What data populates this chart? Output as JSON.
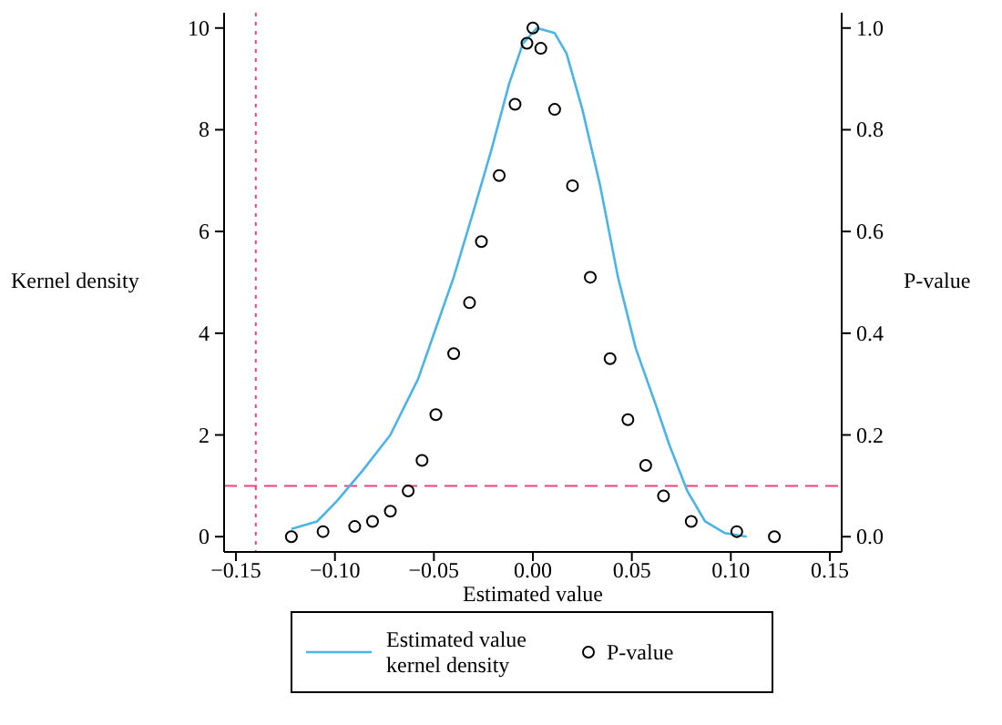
{
  "chart_data": {
    "type": "line",
    "xlabel": "Estimated value",
    "ylabel": "Kernel density",
    "y2label": "P-value",
    "xlim": [
      -0.156,
      0.156
    ],
    "xticks": [
      {
        "value": -0.15,
        "label": "−0.15"
      },
      {
        "value": -0.1,
        "label": "−0.10"
      },
      {
        "value": -0.05,
        "label": "−0.05"
      },
      {
        "value": 0,
        "label": "0.00"
      },
      {
        "value": 0.05,
        "label": "0.05"
      },
      {
        "value": 0.1,
        "label": "0.10"
      },
      {
        "value": 0.15,
        "label": "0.15"
      }
    ],
    "ylim": [
      -0.3,
      10.3
    ],
    "yticks": [
      0,
      2,
      4,
      6,
      8,
      10
    ],
    "y2lim": [
      -0.03,
      1.03
    ],
    "y2ticks": [
      {
        "value": 0,
        "label": "0.0"
      },
      {
        "value": 0.2,
        "label": "0.2"
      },
      {
        "value": 0.4,
        "label": "0.4"
      },
      {
        "value": 0.6,
        "label": "0.6"
      },
      {
        "value": 0.8,
        "label": "0.8"
      },
      {
        "value": 1,
        "label": "1.0"
      }
    ],
    "legend": "bottom",
    "grid": false,
    "ref_lines": [
      {
        "axis": "x",
        "value": -0.14,
        "color": "#e8457c",
        "line_style": "dotted"
      },
      {
        "axis": "y2",
        "value": 0.1,
        "color": "#e8457c",
        "line_style": "dashed"
      }
    ],
    "series": [
      {
        "name": "Estimated value kernel density",
        "color": "#4ab4e6",
        "line_style": "solid",
        "x": [
          -0.122,
          -0.109,
          -0.099,
          -0.086,
          -0.072,
          -0.058,
          -0.049,
          -0.04,
          -0.03,
          -0.021,
          -0.012,
          -0.005,
          0.002,
          0.011,
          0.017,
          0.025,
          0.034,
          0.043,
          0.052,
          0.062,
          0.069,
          0.078,
          0.087,
          0.097,
          0.108
        ],
        "values": [
          0.15,
          0.3,
          0.7,
          1.3,
          2.0,
          3.1,
          4.1,
          5.1,
          6.4,
          7.6,
          8.9,
          9.7,
          10.0,
          9.9,
          9.5,
          8.4,
          6.9,
          5.1,
          3.7,
          2.6,
          1.8,
          0.9,
          0.3,
          0.07,
          0.0
        ]
      },
      {
        "name": "P-value",
        "type": "scatter",
        "axis": "y2",
        "color": "#000000",
        "marker": "circle",
        "x": [
          -0.122,
          -0.106,
          -0.09,
          -0.081,
          -0.072,
          -0.063,
          -0.056,
          -0.049,
          -0.04,
          -0.032,
          -0.026,
          -0.017,
          -0.009,
          -0.003,
          0,
          0.004,
          0.011,
          0.02,
          0.029,
          0.039,
          0.048,
          0.057,
          0.066,
          0.08,
          0.103,
          0.122
        ],
        "values": [
          0.0,
          0.01,
          0.02,
          0.03,
          0.05,
          0.09,
          0.15,
          0.24,
          0.36,
          0.46,
          0.58,
          0.71,
          0.85,
          0.97,
          1.0,
          0.96,
          0.84,
          0.69,
          0.51,
          0.35,
          0.23,
          0.14,
          0.08,
          0.03,
          0.01,
          0.0
        ]
      }
    ]
  }
}
